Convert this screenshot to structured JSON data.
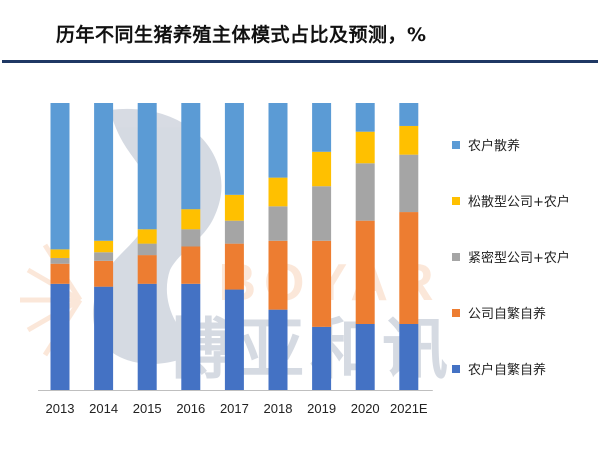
{
  "title": "历年不同生猪养殖主体模式占比及预测，%",
  "chart_data": {
    "type": "bar",
    "stacked": true,
    "normalized": true,
    "title": "历年不同生猪养殖主体模式占比及预测，%",
    "xlabel": "",
    "ylabel": "",
    "ylim": [
      0,
      100
    ],
    "grid": false,
    "legend_position": "right",
    "categories": [
      "2013",
      "2014",
      "2015",
      "2016",
      "2017",
      "2018",
      "2019",
      "2020",
      "2021E"
    ],
    "series": [
      {
        "name": "农户自繁自养",
        "color": "#4472c4",
        "values": [
          37,
          36,
          37,
          37,
          35,
          28,
          22,
          23,
          23
        ]
      },
      {
        "name": "公司自繁自养",
        "color": "#ed7d31",
        "values": [
          7,
          9,
          10,
          13,
          16,
          24,
          30,
          36,
          39
        ]
      },
      {
        "name": "紧密型公司+农户",
        "color": "#a5a5a5",
        "values": [
          2,
          3,
          4,
          6,
          8,
          12,
          19,
          20,
          20
        ]
      },
      {
        "name": "松散型公司+农户",
        "color": "#ffc000",
        "values": [
          3,
          4,
          5,
          7,
          9,
          10,
          12,
          11,
          10
        ]
      },
      {
        "name": "农户散养",
        "color": "#5b9bd5",
        "values": [
          51,
          48,
          44,
          37,
          32,
          26,
          17,
          10,
          8
        ]
      }
    ],
    "legend_order": [
      "农户散养",
      "松散型公司+农户",
      "紧密型公司+农户",
      "公司自繁自养",
      "农户自繁自养"
    ]
  },
  "watermark": {
    "text_cn": "博亚和讯",
    "text_en": "BOYAR"
  }
}
